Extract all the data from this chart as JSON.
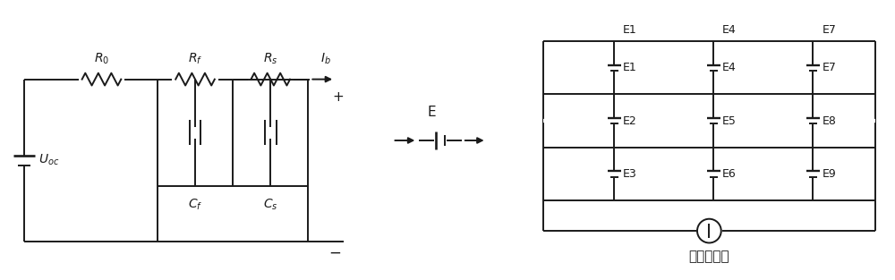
{
  "bg_color": "#ffffff",
  "line_color": "#1a1a1a",
  "fig_width": 10.0,
  "fig_height": 3.13,
  "dpi": 100,
  "label_R0": "$R_0$",
  "label_Rf": "$R_f$",
  "label_Rs": "$R_s$",
  "label_Cf": "$C_f$",
  "label_Cs": "$C_s$",
  "label_Uoc": "$U_{oc}$",
  "label_Ib": "$I_b$",
  "label_E_top": "E",
  "label_plus": "+",
  "label_minus": "−",
  "label_controlled": "受控电流源",
  "bat_labels_col0": [
    "E1",
    "E2",
    "E3"
  ],
  "bat_labels_col1": [
    "E4",
    "E5",
    "E6"
  ],
  "bat_labels_col2": [
    "E7",
    "E8",
    "E9"
  ]
}
